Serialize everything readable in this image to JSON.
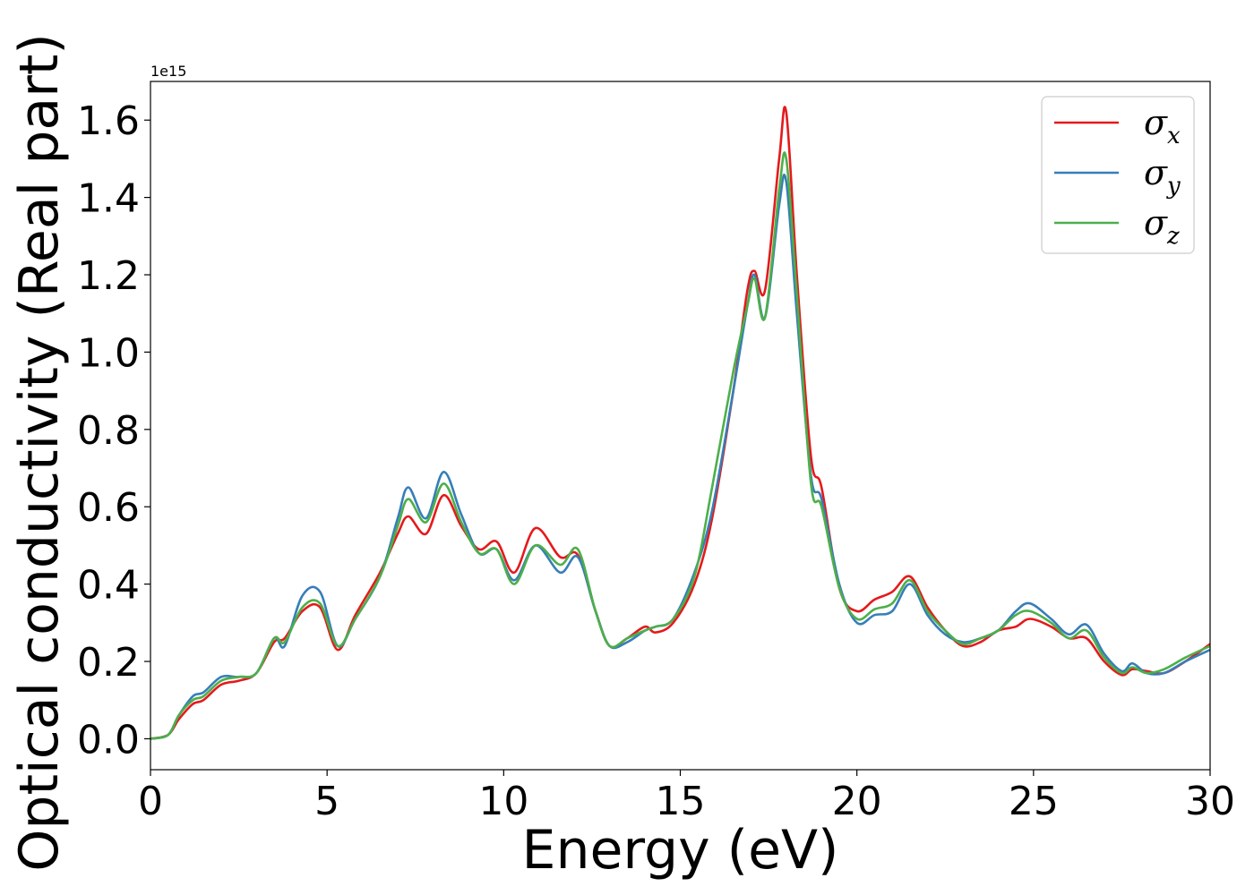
{
  "chart_data": {
    "type": "line",
    "xlabel": "Energy (eV)",
    "ylabel": "Optical conductivity (Real part)",
    "y_offset_label": "1e15",
    "xlim": [
      0,
      30
    ],
    "ylim": [
      -0.08,
      1.7
    ],
    "x_ticks": [
      0,
      5,
      10,
      15,
      20,
      25,
      30
    ],
    "x_tick_labels": [
      "0",
      "5",
      "10",
      "15",
      "20",
      "25",
      "30"
    ],
    "y_ticks": [
      0.0,
      0.2,
      0.4,
      0.6,
      0.8,
      1.0,
      1.2,
      1.4,
      1.6
    ],
    "y_tick_labels": [
      "0.0",
      "0.2",
      "0.4",
      "0.6",
      "0.8",
      "1.0",
      "1.2",
      "1.4",
      "1.6"
    ],
    "grid": false,
    "legend_position": "top-right",
    "x": [
      0,
      0.5,
      0.8,
      1.2,
      1.5,
      2.0,
      2.5,
      3.0,
      3.5,
      3.8,
      4.3,
      4.8,
      5.3,
      5.8,
      6.5,
      7.0,
      7.3,
      7.8,
      8.3,
      8.8,
      9.3,
      9.8,
      10.3,
      10.9,
      11.6,
      12.1,
      12.6,
      13.0,
      13.5,
      14.0,
      14.3,
      14.8,
      15.4,
      15.9,
      16.5,
      16.9,
      17.1,
      17.4,
      17.8,
      18.0,
      18.3,
      18.7,
      19.0,
      19.5,
      20.0,
      20.5,
      21.0,
      21.5,
      22.0,
      22.5,
      23.0,
      23.5,
      24.0,
      24.5,
      24.9,
      25.5,
      26.0,
      26.5,
      27.0,
      27.5,
      27.8,
      28.2,
      28.7,
      29.3,
      30.0
    ],
    "series": [
      {
        "name": "σx",
        "color": "#e41a1c",
        "values": [
          0.0,
          0.01,
          0.05,
          0.09,
          0.1,
          0.14,
          0.15,
          0.17,
          0.25,
          0.26,
          0.33,
          0.34,
          0.23,
          0.32,
          0.43,
          0.53,
          0.575,
          0.53,
          0.63,
          0.55,
          0.49,
          0.51,
          0.43,
          0.545,
          0.47,
          0.475,
          0.33,
          0.24,
          0.26,
          0.29,
          0.275,
          0.3,
          0.4,
          0.57,
          0.9,
          1.16,
          1.21,
          1.16,
          1.5,
          1.62,
          1.2,
          0.73,
          0.65,
          0.39,
          0.33,
          0.36,
          0.38,
          0.42,
          0.34,
          0.28,
          0.24,
          0.25,
          0.28,
          0.29,
          0.31,
          0.29,
          0.26,
          0.26,
          0.2,
          0.165,
          0.18,
          0.175,
          0.17,
          0.2,
          0.245
        ]
      },
      {
        "name": "σy",
        "color": "#377eb8",
        "values": [
          0.0,
          0.01,
          0.06,
          0.11,
          0.12,
          0.16,
          0.16,
          0.17,
          0.26,
          0.24,
          0.37,
          0.38,
          0.24,
          0.31,
          0.42,
          0.57,
          0.65,
          0.57,
          0.69,
          0.58,
          0.48,
          0.49,
          0.41,
          0.5,
          0.43,
          0.47,
          0.33,
          0.24,
          0.25,
          0.28,
          0.29,
          0.31,
          0.43,
          0.59,
          0.9,
          1.12,
          1.2,
          1.09,
          1.38,
          1.44,
          1.1,
          0.68,
          0.62,
          0.4,
          0.3,
          0.32,
          0.33,
          0.4,
          0.32,
          0.27,
          0.25,
          0.26,
          0.28,
          0.33,
          0.35,
          0.31,
          0.27,
          0.295,
          0.22,
          0.175,
          0.195,
          0.17,
          0.17,
          0.2,
          0.23
        ]
      },
      {
        "name": "σz",
        "color": "#4daf4a",
        "values": [
          0.0,
          0.01,
          0.06,
          0.1,
          0.11,
          0.15,
          0.16,
          0.17,
          0.26,
          0.25,
          0.34,
          0.35,
          0.24,
          0.31,
          0.42,
          0.55,
          0.62,
          0.56,
          0.66,
          0.56,
          0.48,
          0.49,
          0.4,
          0.5,
          0.45,
          0.49,
          0.33,
          0.24,
          0.26,
          0.28,
          0.29,
          0.31,
          0.42,
          0.65,
          0.95,
          1.12,
          1.19,
          1.09,
          1.42,
          1.5,
          1.15,
          0.66,
          0.6,
          0.39,
          0.31,
          0.335,
          0.35,
          0.41,
          0.33,
          0.28,
          0.245,
          0.26,
          0.28,
          0.32,
          0.33,
          0.3,
          0.26,
          0.28,
          0.21,
          0.17,
          0.185,
          0.17,
          0.18,
          0.21,
          0.24
        ]
      }
    ]
  }
}
